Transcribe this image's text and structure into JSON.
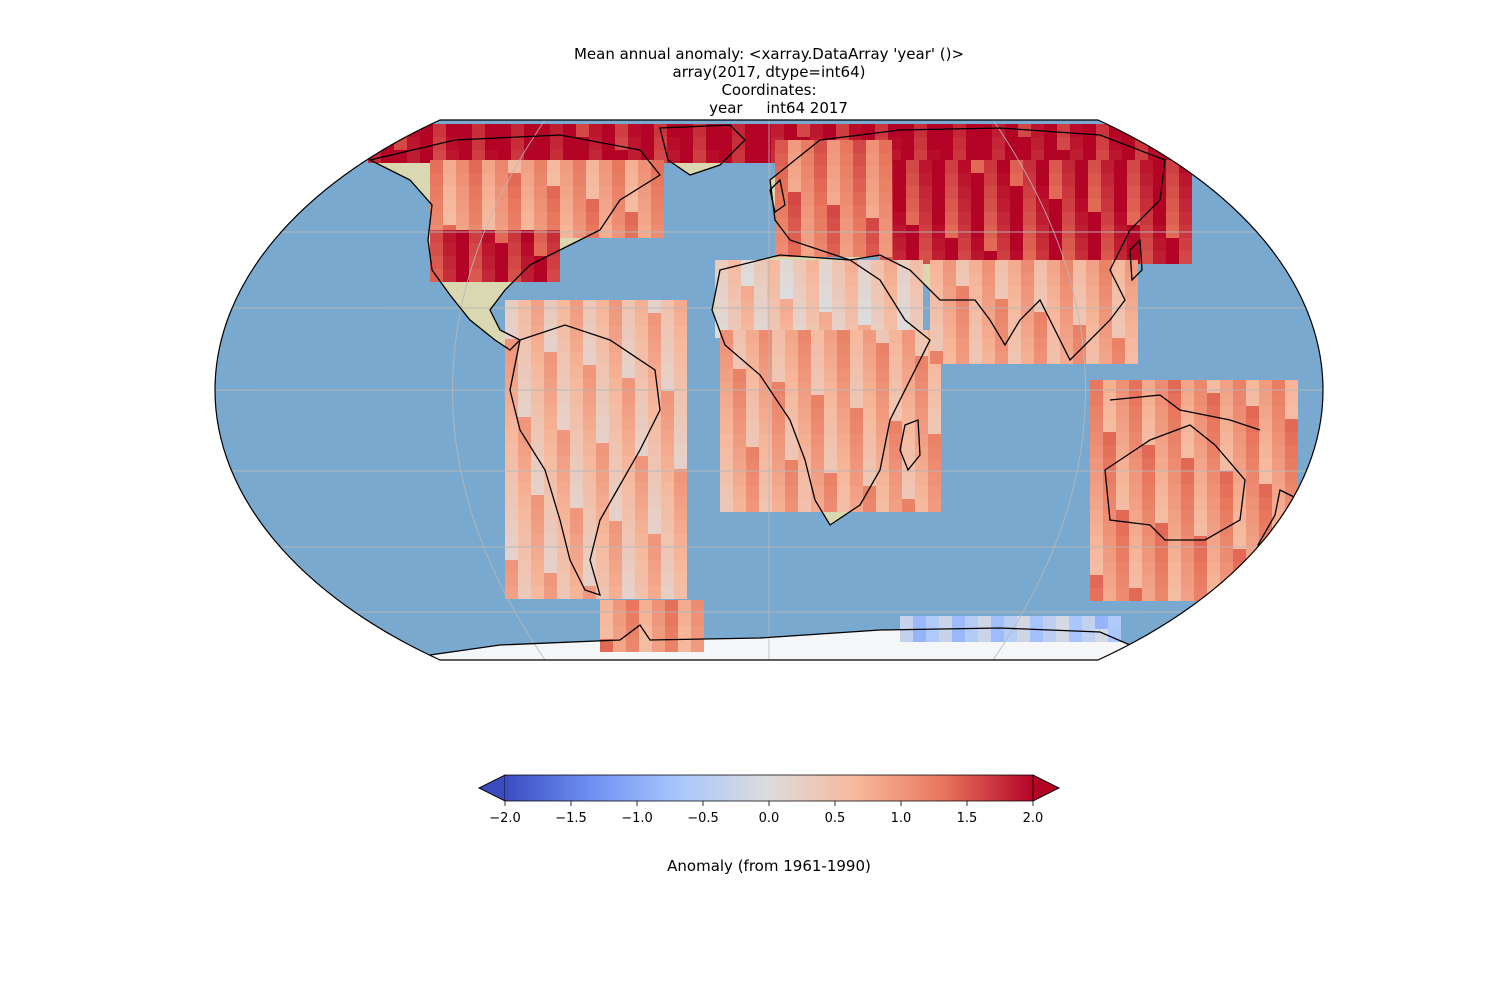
{
  "title_lines": [
    "Mean annual anomaly: <xarray.DataArray 'year' ()>",
    "array(2017, dtype=int64)",
    "Coordinates:",
    "    year     int64 2017"
  ],
  "map_data": {
    "projection": "Robinson",
    "field": "annual temperature anomaly",
    "grid": true,
    "colormap": "coolwarm",
    "colors": {
      "ocean": "#79a9cf",
      "land": "#d9d8b0",
      "coastline": "#000000",
      "gridline": "#b8b8b8"
    },
    "regions": [
      {
        "name": "arctic",
        "value": 2.0
      },
      {
        "name": "siberia",
        "value": 1.8
      },
      {
        "name": "northern-europe",
        "value": 1.2
      },
      {
        "name": "north-america-north",
        "value": 1.0
      },
      {
        "name": "us-east",
        "value": 1.8
      },
      {
        "name": "sahara",
        "value": 0.4
      },
      {
        "name": "central-africa",
        "value": 0.8
      },
      {
        "name": "south-america",
        "value": 0.6
      },
      {
        "name": "australia",
        "value": 1.0
      },
      {
        "name": "india",
        "value": 0.8
      },
      {
        "name": "antarctica-east",
        "value": -0.5
      },
      {
        "name": "antarctic-peninsula",
        "value": 1.0
      }
    ]
  },
  "colorbar": {
    "vmin": -2.0,
    "vmax": 2.0,
    "ticks": [
      -2.0,
      -1.5,
      -1.0,
      -0.5,
      0.0,
      0.5,
      1.0,
      1.5,
      2.0
    ],
    "tick_labels": [
      "−2.0",
      "−1.5",
      "−1.0",
      "−0.5",
      "0.0",
      "0.5",
      "1.0",
      "1.5",
      "2.0"
    ],
    "extend": "both",
    "label": "Anomaly (from 1961-1990)",
    "stops": [
      "#3b4cc0",
      "#6f92f3",
      "#aac7fd",
      "#dddcdc",
      "#f7b89c",
      "#e7745b",
      "#b40426"
    ]
  }
}
